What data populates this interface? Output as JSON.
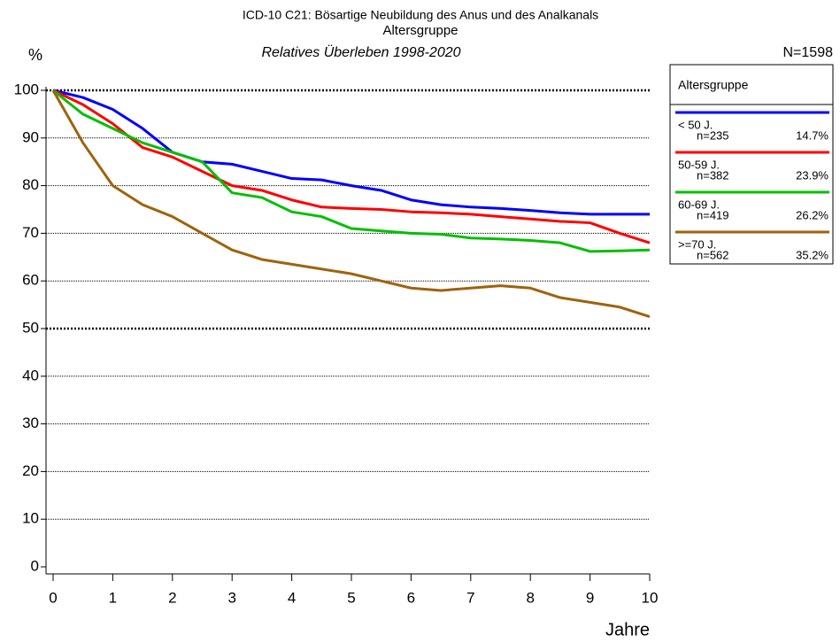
{
  "chart_data": {
    "type": "line",
    "title": "ICD-10 C21: Bösartige Neubildung des Anus und des Analkanals",
    "title2": "Altersgruppe",
    "subtitle": "Relatives Überleben 1998-2020",
    "y_label": "%",
    "x_label": "Jahre",
    "n_total": "N=1598",
    "legend_title": "Altersgruppe",
    "x": [
      0,
      0.5,
      1,
      1.5,
      2,
      2.5,
      3,
      3.5,
      4,
      4.5,
      5,
      5.5,
      6,
      6.5,
      7,
      7.5,
      8,
      8.5,
      9,
      9.5,
      10
    ],
    "series": [
      {
        "name": "< 50 J.",
        "n_label": "n=235",
        "share": "14.7%",
        "color": "#0000ff",
        "values": [
          100,
          98.5,
          96,
          92,
          87,
          85,
          84.5,
          83,
          81.5,
          81.2,
          80,
          79,
          77,
          76,
          75.5,
          75.2,
          74.8,
          74.3,
          74,
          74,
          74
        ]
      },
      {
        "name": "50-59 J.",
        "n_label": "n=382",
        "share": "23.9%",
        "color": "#ff0000",
        "values": [
          100,
          97,
          93,
          88,
          86,
          83,
          80,
          79,
          77,
          75.5,
          75.2,
          75,
          74.5,
          74.3,
          74,
          73.5,
          73,
          72.5,
          72.2,
          70,
          68
        ]
      },
      {
        "name": "60-69 J.",
        "n_label": "n=419",
        "share": "26.2%",
        "color": "#00c000",
        "values": [
          100,
          95,
          92,
          89,
          87,
          85,
          78.5,
          77.5,
          74.5,
          73.5,
          71,
          70.5,
          70,
          69.8,
          69,
          68.8,
          68.5,
          68,
          66.2,
          66.3,
          66.5
        ]
      },
      {
        "name": ">=70 J.",
        "n_label": "n=562",
        "share": "35.2%",
        "color": "#a0620a",
        "values": [
          100,
          89,
          80,
          76,
          73.5,
          70,
          66.5,
          64.5,
          63.5,
          62.5,
          61.5,
          60,
          58.5,
          58,
          58.5,
          59,
          58.5,
          56.5,
          55.5,
          54.5,
          52.5
        ]
      }
    ],
    "xlim": [
      0,
      10
    ],
    "xticks": [
      0,
      1,
      2,
      3,
      4,
      5,
      6,
      7,
      8,
      9,
      10
    ],
    "ylim": [
      0,
      100
    ],
    "yticks": [
      0,
      10,
      20,
      30,
      40,
      50,
      60,
      70,
      80,
      90,
      100
    ],
    "grid": true
  }
}
